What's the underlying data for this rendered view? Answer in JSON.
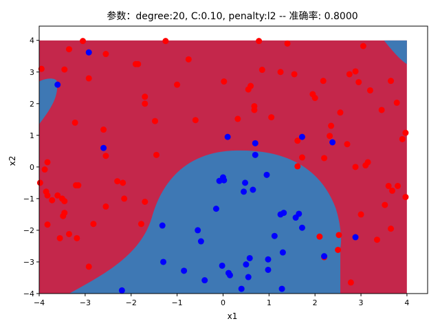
{
  "chart_data": {
    "type": "scatter",
    "title": "参数：degree:20, C:0.10, penalty:l2 -- 准确率: 0.8000",
    "xlabel": "x1",
    "ylabel": "x2",
    "xlim": [
      -4,
      4.45
    ],
    "ylim": [
      -4,
      4.45
    ],
    "xticks": [
      -4,
      -3,
      -2,
      -1,
      0,
      1,
      2,
      3,
      4
    ],
    "yticks": [
      -4,
      -3,
      -2,
      -1,
      0,
      1,
      2,
      3,
      4
    ],
    "grid": false,
    "background_regions": {
      "description_colors": {
        "class_0": "#c4274b",
        "class_1": "#3e78b4"
      },
      "region_extent": {
        "x": [
          -4,
          4
        ],
        "y": [
          -4,
          4
        ]
      }
    },
    "series": [
      {
        "color": "#ff0000",
        "points": [
          [
            -3.05,
            3.98
          ],
          [
            -1.25,
            3.98
          ],
          [
            0.78,
            3.98
          ],
          [
            1.4,
            3.9
          ],
          [
            3.05,
            3.82
          ],
          [
            -3.35,
            3.72
          ],
          [
            -2.55,
            3.57
          ],
          [
            -1.85,
            3.25
          ],
          [
            -0.75,
            3.4
          ],
          [
            -1.9,
            3.25
          ],
          [
            -3.95,
            3.1
          ],
          [
            -3.45,
            3.08
          ],
          [
            0.6,
            2.56
          ],
          [
            1.25,
            3.0
          ],
          [
            0.85,
            3.07
          ],
          [
            1.55,
            2.93
          ],
          [
            2.75,
            2.93
          ],
          [
            2.88,
            3.02
          ],
          [
            2.18,
            2.72
          ],
          [
            3.65,
            2.72
          ],
          [
            -2.92,
            2.8
          ],
          [
            0.02,
            2.7
          ],
          [
            0.55,
            2.45
          ],
          [
            -1.0,
            2.6
          ],
          [
            1.95,
            2.3
          ],
          [
            3.2,
            2.42
          ],
          [
            2.95,
            2.68
          ],
          [
            -1.7,
            2.22
          ],
          [
            -1.7,
            2.0
          ],
          [
            0.68,
            1.92
          ],
          [
            0.68,
            1.8
          ],
          [
            2.0,
            2.18
          ],
          [
            3.78,
            2.03
          ],
          [
            2.55,
            1.72
          ],
          [
            3.45,
            1.8
          ],
          [
            -1.48,
            1.45
          ],
          [
            -0.6,
            1.48
          ],
          [
            0.32,
            1.52
          ],
          [
            1.05,
            1.57
          ],
          [
            -3.22,
            1.4
          ],
          [
            2.35,
            1.3
          ],
          [
            -2.6,
            1.18
          ],
          [
            2.32,
            0.98
          ],
          [
            3.97,
            1.08
          ],
          [
            3.9,
            0.88
          ],
          [
            1.62,
            0.83
          ],
          [
            2.2,
            0.28
          ],
          [
            1.72,
            0.3
          ],
          [
            1.62,
            0.02
          ],
          [
            2.7,
            0.72
          ],
          [
            3.15,
            0.15
          ],
          [
            3.1,
            0.05
          ],
          [
            2.88,
            0.0
          ],
          [
            -2.55,
            0.35
          ],
          [
            -3.82,
            0.15
          ],
          [
            -3.88,
            -0.08
          ],
          [
            -1.45,
            0.38
          ],
          [
            -2.3,
            -0.45
          ],
          [
            -2.18,
            -0.5
          ],
          [
            -3.98,
            -0.5
          ],
          [
            -3.85,
            -0.78
          ],
          [
            -3.82,
            -0.9
          ],
          [
            -3.15,
            -0.58
          ],
          [
            -3.2,
            -0.58
          ],
          [
            -3.6,
            -0.9
          ],
          [
            3.6,
            -0.6
          ],
          [
            3.68,
            -0.75
          ],
          [
            3.8,
            -0.6
          ],
          [
            3.97,
            -0.95
          ],
          [
            -2.15,
            -1.0
          ],
          [
            -3.5,
            -1.0
          ],
          [
            -3.72,
            -1.05
          ],
          [
            -3.45,
            -1.08
          ],
          [
            -1.7,
            -1.1
          ],
          [
            3.52,
            -1.2
          ],
          [
            -2.55,
            -1.25
          ],
          [
            -3.45,
            -1.45
          ],
          [
            -3.48,
            -1.55
          ],
          [
            -3.82,
            -1.82
          ],
          [
            -2.82,
            -1.8
          ],
          [
            -1.78,
            -1.8
          ],
          [
            3.0,
            -1.5
          ],
          [
            3.65,
            -1.95
          ],
          [
            -3.35,
            -2.12
          ],
          [
            -3.55,
            -2.25
          ],
          [
            -3.18,
            -2.25
          ],
          [
            2.1,
            -2.2
          ],
          [
            3.35,
            -2.3
          ],
          [
            2.5,
            -2.62
          ],
          [
            2.2,
            -2.85
          ],
          [
            2.52,
            -2.15
          ],
          [
            -2.92,
            -3.15
          ],
          [
            2.78,
            -3.65
          ]
        ]
      },
      {
        "color": "#0000ff",
        "points": [
          [
            -2.92,
            3.62
          ],
          [
            -3.6,
            2.6
          ],
          [
            -2.6,
            0.6
          ],
          [
            0.1,
            0.95
          ],
          [
            1.72,
            0.95
          ],
          [
            0.7,
            0.75
          ],
          [
            2.38,
            0.78
          ],
          [
            0.7,
            0.38
          ],
          [
            -0.08,
            -0.44
          ],
          [
            0.0,
            -0.33
          ],
          [
            0.02,
            -0.42
          ],
          [
            0.48,
            -0.5
          ],
          [
            0.95,
            -0.25
          ],
          [
            0.45,
            -0.78
          ],
          [
            0.65,
            -0.72
          ],
          [
            -0.15,
            -1.32
          ],
          [
            1.65,
            -1.48
          ],
          [
            1.25,
            -1.5
          ],
          [
            1.32,
            -1.45
          ],
          [
            1.58,
            -1.6
          ],
          [
            -1.32,
            -1.85
          ],
          [
            1.72,
            -1.92
          ],
          [
            -0.55,
            -2.0
          ],
          [
            -0.48,
            -2.35
          ],
          [
            1.12,
            -2.18
          ],
          [
            2.88,
            -2.22
          ],
          [
            1.3,
            -2.7
          ],
          [
            0.58,
            -2.88
          ],
          [
            0.98,
            -2.92
          ],
          [
            -1.3,
            -3.0
          ],
          [
            0.5,
            -3.08
          ],
          [
            2.2,
            -2.82
          ],
          [
            -0.02,
            -3.12
          ],
          [
            0.12,
            -3.35
          ],
          [
            0.15,
            -3.42
          ],
          [
            0.98,
            -3.25
          ],
          [
            -0.85,
            -3.28
          ],
          [
            0.55,
            -3.48
          ],
          [
            -0.4,
            -3.58
          ],
          [
            -2.2,
            -3.9
          ],
          [
            0.4,
            -3.85
          ],
          [
            1.28,
            -3.85
          ]
        ]
      }
    ]
  }
}
